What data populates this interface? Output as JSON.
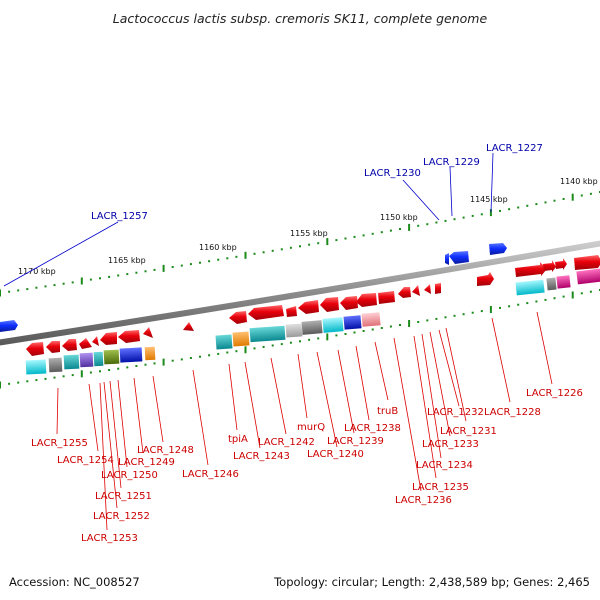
{
  "title": "Lactococcus lactis subsp. cremoris SK11, complete genome",
  "footer": {
    "accession": "Accession: NC_008527",
    "topology": "Topology: circular; Length: 2,438,589 bp; Genes: 2,465"
  },
  "colors": {
    "forward_gene": "#e8000b",
    "reverse_gene_blue": "#1030ff",
    "label_red": "#cc0000",
    "label_blue": "#0000aa",
    "tick": "#1a8a1a",
    "backbone": "#8c8c8c",
    "cog_cyan": "#00d8e0",
    "cog_orange": "#ff9a1a",
    "cog_blue": "#1a2bd8",
    "cog_grey": "#888888",
    "cog_lightgrey": "#b8b8b8",
    "cog_pink": "#f59aa0",
    "cog_magenta": "#e0148c",
    "cog_purple": "#7a4fc8",
    "cog_olive": "#6a8c1a",
    "cog_teal": "#18b0b8"
  },
  "ticks": [
    "1140 kbp",
    "1145 kbp",
    "1150 kbp",
    "1155 kbp",
    "1160 kbp",
    "1165 kbp",
    "1170 kbp"
  ],
  "gene_labels_top": [
    "LACR_1227",
    "LACR_1229",
    "LACR_1230",
    "LACR_1257"
  ],
  "gene_labels_bottom": [
    "LACR_1226",
    "LACR_1228",
    "LACR_1231",
    "LACR_1232",
    "truB",
    "LACR_1233",
    "LACR_1234",
    "LACR_1235",
    "LACR_1236",
    "LACR_1238",
    "LACR_1239",
    "LACR_1240",
    "murQ",
    "LACR_1242",
    "tpiA",
    "LACR_1243",
    "LACR_1246",
    "LACR_1248",
    "LACR_1249",
    "LACR_1250",
    "LACR_1251",
    "LACR_1252",
    "LACR_1253",
    "LACR_1254",
    "LACR_1255"
  ]
}
